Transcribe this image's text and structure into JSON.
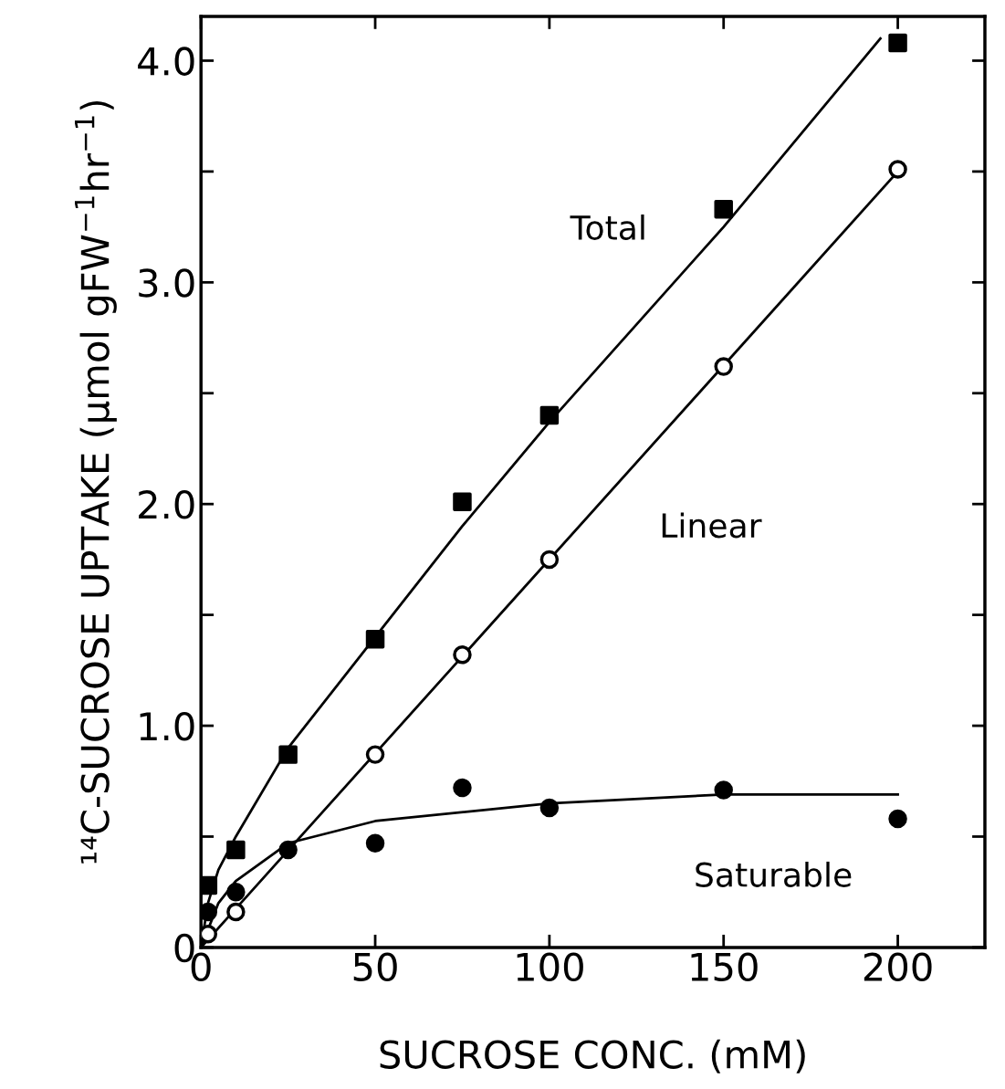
{
  "chart_data": {
    "type": "scatter",
    "xlabel": "SUCROSE CONC. (mM)",
    "ylabel": "¹⁴C-SUCROSE UPTAKE (µmol gFW$^{−1}$hr$^{−1}$)",
    "xlim": [
      0,
      225
    ],
    "ylim": [
      0,
      4.2
    ],
    "xticks": [
      0,
      50,
      100,
      150,
      200
    ],
    "yticks": [
      0,
      {
        "value": 0.5,
        "label": null
      },
      {
        "value": 1,
        "label": "1.0"
      },
      {
        "value": 1.5,
        "label": null
      },
      {
        "value": 2,
        "label": "2.0"
      },
      {
        "value": 2.5,
        "label": null
      },
      {
        "value": 3,
        "label": "3.0"
      },
      {
        "value": 3.5,
        "label": null
      },
      {
        "value": 4,
        "label": "4.0"
      }
    ],
    "grid": false,
    "legend": false,
    "series": [
      {
        "type": "line",
        "color": "#000000",
        "marker": "none",
        "x": [
          0,
          2,
          5,
          10,
          25,
          50,
          75,
          100,
          150,
          195
        ],
        "values": [
          0,
          0.2,
          0.35,
          0.5,
          0.9,
          1.4,
          1.9,
          2.37,
          3.25,
          4.1
        ]
      },
      {
        "type": "line",
        "color": "#000000",
        "marker": "none",
        "x": [
          0,
          200
        ],
        "values": [
          0,
          3.5
        ]
      },
      {
        "type": "line",
        "color": "#000000",
        "marker": "none",
        "x": [
          0,
          5,
          10,
          25,
          50,
          100,
          150,
          200
        ],
        "values": [
          0,
          0.2,
          0.3,
          0.47,
          0.57,
          0.65,
          0.69,
          0.69
        ]
      },
      {
        "color": "#000000",
        "marker": "square",
        "x": [
          2,
          10,
          25,
          50,
          75,
          100,
          150,
          200
        ],
        "values": [
          0.28,
          0.44,
          0.87,
          1.39,
          2.01,
          2.4,
          3.33,
          4.08
        ]
      },
      {
        "color": "#ffffff",
        "marker": "circle",
        "x": [
          2,
          10,
          50,
          75,
          100,
          150,
          200
        ],
        "values": [
          0.06,
          0.16,
          0.87,
          1.32,
          1.75,
          2.62,
          3.51
        ]
      },
      {
        "color": "#000000",
        "marker": "circle",
        "x": [
          2,
          10,
          25,
          50,
          75,
          100,
          150,
          200
        ],
        "values": [
          0.16,
          0.25,
          0.44,
          0.47,
          0.72,
          0.63,
          0.71,
          0.58
        ]
      }
    ],
    "annotations": [
      "Total",
      "Linear",
      "Saturable"
    ]
  }
}
